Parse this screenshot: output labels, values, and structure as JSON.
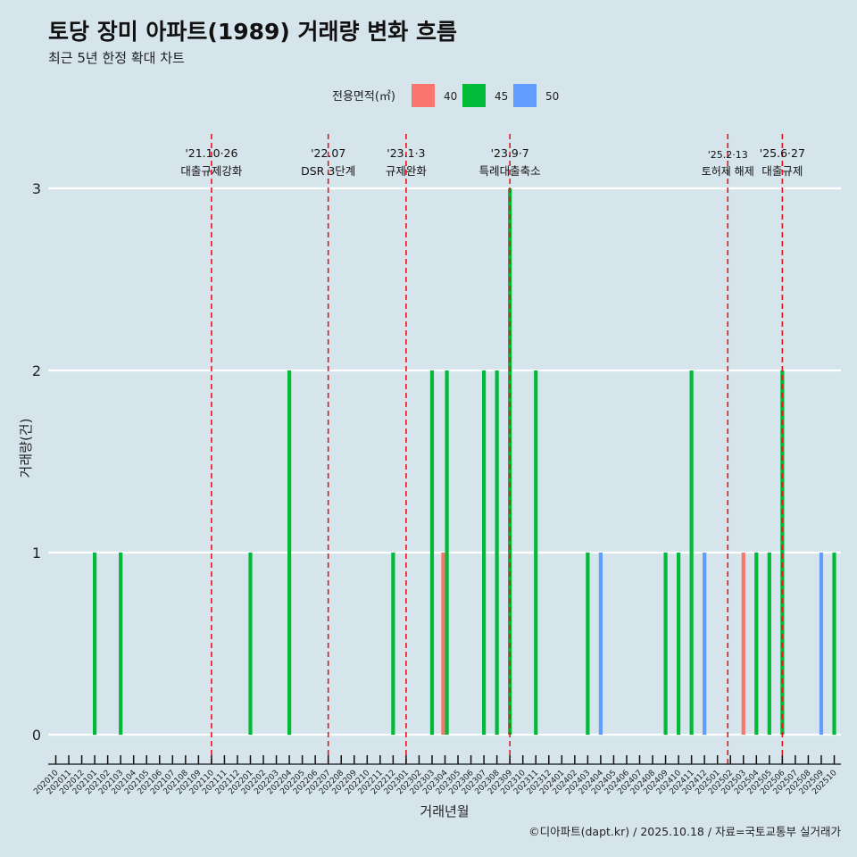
{
  "chart_data": {
    "type": "bar",
    "title": "토당 장미 아파트(1989) 거래량 변화 흐름",
    "subtitle": "최근 5년 한정 확대 차트",
    "xlabel": "거래년월",
    "ylabel": "거래량(건)",
    "ylim": [
      0,
      3
    ],
    "y_ticks": [
      0,
      1,
      2,
      3
    ],
    "grid": true,
    "legend": {
      "title": "전용면적(㎡)",
      "position": "top",
      "items": [
        {
          "name": "40",
          "color": "#f8766d"
        },
        {
          "name": "45",
          "color": "#00ba38"
        },
        {
          "name": "50",
          "color": "#619cff"
        }
      ]
    },
    "categories": [
      "202010",
      "202011",
      "202012",
      "202101",
      "202102",
      "202103",
      "202104",
      "202105",
      "202106",
      "202107",
      "202108",
      "202109",
      "202110",
      "202111",
      "202112",
      "202201",
      "202202",
      "202203",
      "202204",
      "202205",
      "202206",
      "202207",
      "202208",
      "202209",
      "202210",
      "202211",
      "202212",
      "202301",
      "202302",
      "202303",
      "202304",
      "202305",
      "202306",
      "202307",
      "202308",
      "202309",
      "202310",
      "202311",
      "202312",
      "202401",
      "202402",
      "202403",
      "202404",
      "202405",
      "202406",
      "202407",
      "202408",
      "202409",
      "202410",
      "202411",
      "202412",
      "202501",
      "202502",
      "202503",
      "202504",
      "202505",
      "202506",
      "202507",
      "202508",
      "202509",
      "202510"
    ],
    "series": [
      {
        "name": "40",
        "color": "#f8766d",
        "values": [
          0,
          0,
          0,
          0,
          0,
          0,
          0,
          0,
          0,
          0,
          0,
          0,
          0,
          0,
          0,
          0,
          0,
          0,
          0,
          0,
          0,
          0,
          0,
          0,
          0,
          0,
          0,
          0,
          0,
          0,
          1,
          0,
          0,
          0,
          0,
          0,
          0,
          0,
          0,
          0,
          0,
          0,
          0,
          0,
          0,
          0,
          0,
          0,
          0,
          0,
          0,
          0,
          0,
          1,
          0,
          0,
          0,
          0,
          0,
          0,
          0
        ]
      },
      {
        "name": "45",
        "color": "#00ba38",
        "values": [
          0,
          0,
          0,
          1,
          0,
          1,
          0,
          0,
          0,
          0,
          0,
          0,
          0,
          0,
          0,
          1,
          0,
          0,
          2,
          0,
          0,
          0,
          0,
          0,
          0,
          0,
          1,
          0,
          0,
          2,
          2,
          0,
          0,
          2,
          2,
          3,
          0,
          2,
          0,
          0,
          0,
          1,
          0,
          0,
          0,
          0,
          0,
          1,
          1,
          2,
          0,
          0,
          0,
          0,
          1,
          1,
          2,
          0,
          0,
          0,
          1
        ]
      },
      {
        "name": "50",
        "color": "#619cff",
        "values": [
          0,
          0,
          0,
          0,
          0,
          0,
          0,
          0,
          0,
          0,
          0,
          0,
          0,
          0,
          0,
          0,
          0,
          0,
          0,
          0,
          0,
          0,
          0,
          0,
          0,
          0,
          0,
          0,
          0,
          0,
          0,
          0,
          0,
          0,
          0,
          0,
          0,
          0,
          0,
          0,
          0,
          0,
          1,
          0,
          0,
          0,
          0,
          0,
          0,
          0,
          1,
          0,
          0,
          0,
          0,
          0,
          0,
          0,
          0,
          1,
          0
        ]
      }
    ],
    "annotations": [
      {
        "month": "202110",
        "date": "'21.10·26",
        "label": "대출규제강화"
      },
      {
        "month": "202207",
        "date": "'22.07",
        "label": "DSR 3단계"
      },
      {
        "month": "202301",
        "date": "'23.1·3",
        "label": "규제완화"
      },
      {
        "month": "202309",
        "date": "'23.9·7",
        "label": "특례대출축소"
      },
      {
        "month": "202502",
        "date": "'25.2·13",
        "label": "토허제 해제"
      },
      {
        "month": "202506",
        "date": "'25.6·27",
        "label": "대출규제"
      }
    ],
    "caption": "©디아파트(dapt.kr) / 2025.10.18 / 자료=국토교통부 실거래가"
  }
}
